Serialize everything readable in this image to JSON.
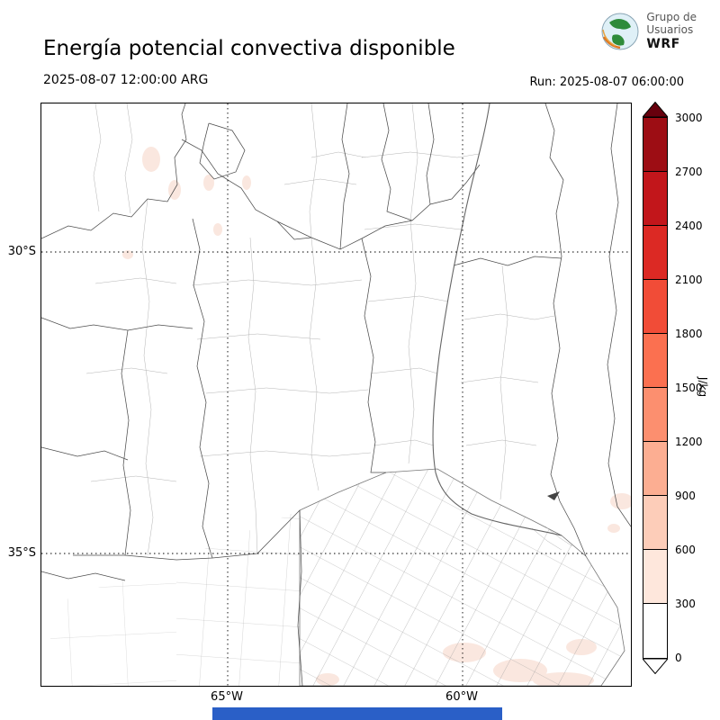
{
  "header": {
    "title": "Energía potencial convectiva disponible",
    "valid_time": "2025-08-07 12:00:00 ARG",
    "run_time": "Run: 2025-08-07 06:00:00",
    "logo": {
      "line1": "Grupo de",
      "line2": "Usuarios",
      "line3": "WRF"
    }
  },
  "map": {
    "lat_ticks": [
      "30°S",
      "35°S"
    ],
    "lon_ticks": [
      "65°W",
      "60°W"
    ]
  },
  "colorbar": {
    "units": "J/kg",
    "ticks": [
      "0",
      "300",
      "600",
      "900",
      "1200",
      "1500",
      "1800",
      "2100",
      "2400",
      "2700",
      "3000"
    ],
    "colors_low_to_high": [
      "#ffffff",
      "#fee7dc",
      "#fdcdb9",
      "#fcae92",
      "#fc8f6f",
      "#fb7050",
      "#f14c37",
      "#dc2924",
      "#c2161b",
      "#9d0d14"
    ],
    "over_color": "#67000d",
    "under_color": "#ffffff"
  },
  "footer": {
    "bar_color": "#2a5fc7"
  },
  "chart_data": {
    "type": "heatmap",
    "title": "Energía potencial convectiva disponible",
    "variable_units": "J/kg",
    "valid_time": "2025-08-07 12:00:00 ARG",
    "run": "2025-08-07 06:00:00",
    "colorbar_ticks": [
      0,
      300,
      600,
      900,
      1200,
      1500,
      1800,
      2100,
      2400,
      2700,
      3000
    ],
    "colorbar_range": [
      0,
      3000
    ],
    "lat_gridlines": [
      "30°S",
      "35°S"
    ],
    "lon_gridlines": [
      "65°W",
      "60°W"
    ],
    "field_summary": "CAPE near 0 J/kg over almost the whole domain; faint patches below 300 J/kg near the top-left and bottom-right of the map"
  }
}
